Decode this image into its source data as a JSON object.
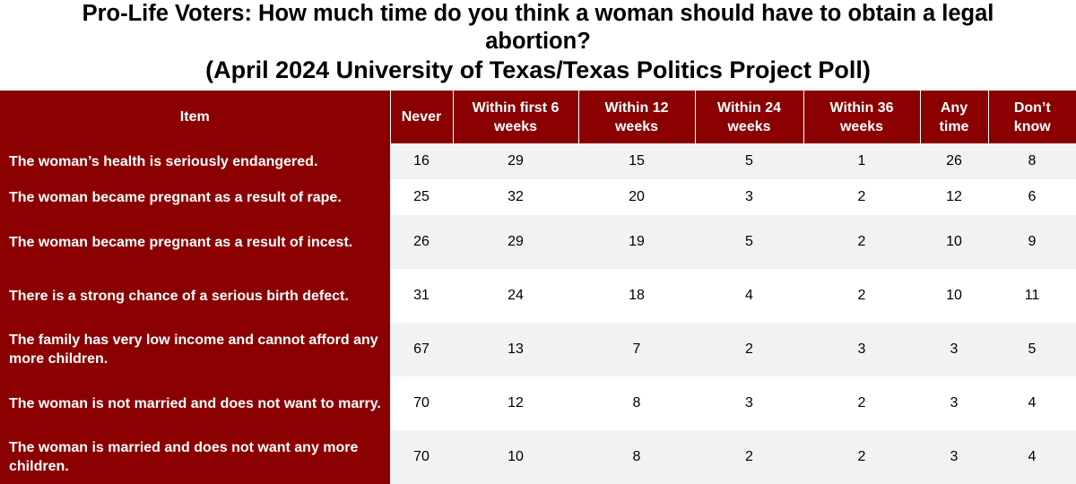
{
  "title": {
    "line1": "Pro-Life Voters: How much time do you think a woman should have to obtain a legal",
    "line2": "abortion?",
    "line3": "(April 2024 University of Texas/Texas Politics Project Poll)"
  },
  "colors": {
    "header_bg": "#8b0000",
    "header_text": "#ffffff",
    "row_alt_bg": "#f2f2f2"
  },
  "chart_data": {
    "type": "table",
    "columns": [
      "Item",
      "Never",
      "Within first 6 weeks",
      "Within 12 weeks",
      "Within 24 weeks",
      "Within 36 weeks",
      "Any time",
      "Don’t know"
    ],
    "rows": [
      {
        "item": "The woman’s health is seriously endangered.",
        "values": [
          16,
          29,
          15,
          5,
          1,
          26,
          8
        ]
      },
      {
        "item": "The woman became pregnant as a result of rape.",
        "values": [
          25,
          32,
          20,
          3,
          2,
          12,
          6
        ]
      },
      {
        "item": "The woman became pregnant as a result of incest.",
        "values": [
          26,
          29,
          19,
          5,
          2,
          10,
          9
        ]
      },
      {
        "item": "There is a strong chance of a serious birth defect.",
        "values": [
          31,
          24,
          18,
          4,
          2,
          10,
          11
        ]
      },
      {
        "item": "The family has very low income and cannot afford any more children.",
        "values": [
          67,
          13,
          7,
          2,
          3,
          3,
          5
        ]
      },
      {
        "item": "The woman is not married and does not want to marry.",
        "values": [
          70,
          12,
          8,
          3,
          2,
          3,
          4
        ]
      },
      {
        "item": "The woman is married and does not want any more children.",
        "values": [
          70,
          10,
          8,
          2,
          2,
          3,
          4
        ]
      }
    ]
  }
}
